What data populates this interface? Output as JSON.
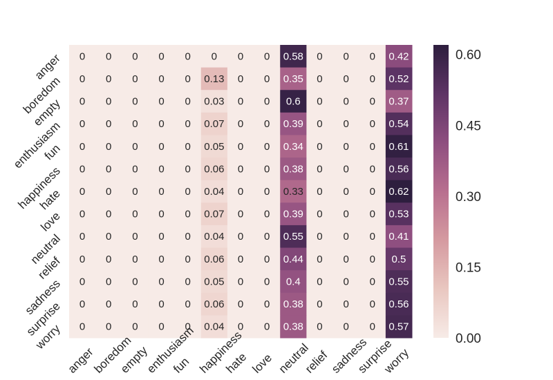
{
  "chart_data": {
    "type": "heatmap",
    "title": "",
    "xlabel": "",
    "ylabel": "",
    "x_categories": [
      "anger",
      "boredom",
      "empty",
      "enthusiasm",
      "fun",
      "happiness",
      "hate",
      "love",
      "neutral",
      "relief",
      "sadness",
      "surprise",
      "worry"
    ],
    "y_categories": [
      "anger",
      "boredom",
      "empty",
      "enthusiasm",
      "fun",
      "happiness",
      "hate",
      "love",
      "neutral",
      "relief",
      "sadness",
      "surprise",
      "worry"
    ],
    "values": [
      [
        0,
        0,
        0,
        0,
        0,
        0,
        0,
        0,
        0.58,
        0,
        0,
        0,
        0.42
      ],
      [
        0,
        0,
        0,
        0,
        0,
        0.13,
        0,
        0,
        0.35,
        0,
        0,
        0,
        0.52
      ],
      [
        0,
        0,
        0,
        0,
        0,
        0.03,
        0,
        0,
        0.6,
        0,
        0,
        0,
        0.37
      ],
      [
        0,
        0,
        0,
        0,
        0,
        0.07,
        0,
        0,
        0.39,
        0,
        0,
        0,
        0.54
      ],
      [
        0,
        0,
        0,
        0,
        0,
        0.05,
        0,
        0,
        0.34,
        0,
        0,
        0,
        0.61
      ],
      [
        0,
        0,
        0,
        0,
        0,
        0.06,
        0,
        0,
        0.38,
        0,
        0,
        0,
        0.56
      ],
      [
        0,
        0,
        0,
        0,
        0,
        0.04,
        0,
        0,
        0.33,
        0,
        0,
        0,
        0.62
      ],
      [
        0,
        0,
        0,
        0,
        0,
        0.07,
        0,
        0,
        0.39,
        0,
        0,
        0,
        0.53
      ],
      [
        0,
        0,
        0,
        0,
        0,
        0.04,
        0,
        0,
        0.55,
        0,
        0,
        0,
        0.41
      ],
      [
        0,
        0,
        0,
        0,
        0,
        0.06,
        0,
        0,
        0.44,
        0,
        0,
        0,
        0.5
      ],
      [
        0,
        0,
        0,
        0,
        0,
        0.05,
        0,
        0,
        0.4,
        0,
        0,
        0,
        0.55
      ],
      [
        0,
        0,
        0,
        0,
        0,
        0.06,
        0,
        0,
        0.38,
        0,
        0,
        0,
        0.56
      ],
      [
        0,
        0,
        0,
        0,
        0,
        0.04,
        0,
        0,
        0.38,
        0,
        0,
        0,
        0.57
      ]
    ],
    "value_range": [
      0,
      0.62
    ],
    "colorbar": {
      "ticks": [
        "0.00",
        "0.15",
        "0.30",
        "0.45",
        "0.60"
      ],
      "tick_values": [
        0,
        0.15,
        0.3,
        0.45,
        0.6
      ]
    },
    "colormap": [
      "#f7ebe7",
      "#e9c7c0",
      "#d59aa0",
      "#b86f8f",
      "#8e4e7f",
      "#5e3465",
      "#2d1e3e"
    ],
    "grid": false,
    "legend": "colorbar-right"
  }
}
